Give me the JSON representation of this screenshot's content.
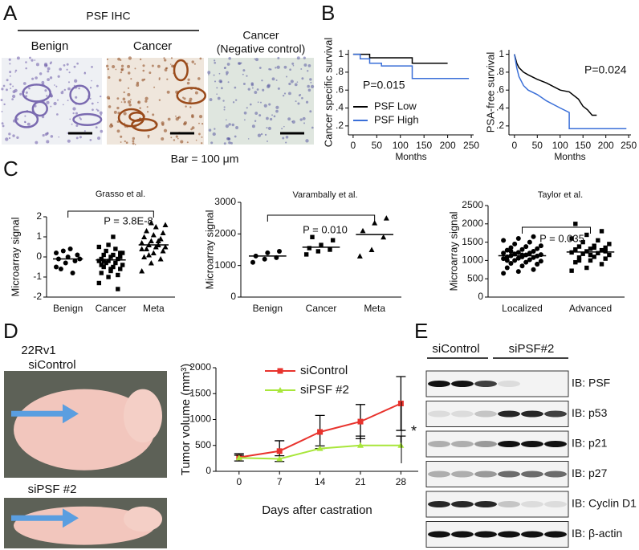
{
  "panel_labels": [
    "A",
    "B",
    "C",
    "D",
    "E"
  ],
  "panel_a": {
    "title": "PSF IHC",
    "columns": [
      [
        "Benign"
      ],
      [
        "Cancer"
      ],
      [
        "Cancer",
        "(Negative control)"
      ]
    ],
    "scale": "Bar = 100 μm"
  },
  "panel_d": {
    "cell_line": "22Rv1",
    "photo_labels": [
      "siControl",
      "siPSF #2"
    ]
  },
  "panel_e": {
    "groups": [
      "siControl",
      "siPSF#2"
    ],
    "blots": [
      "IB: PSF",
      "IB: p53",
      "IB: p21",
      "IB: p27",
      "IB: Cyclin D1",
      "IB: β-actin"
    ]
  },
  "chart_data": [
    {
      "type": "step",
      "ylabel": "Cancer specific survival",
      "xlabel": "Months",
      "annotation": "P=0.015",
      "xlim": [
        -10,
        255
      ],
      "xticks": [
        0,
        50,
        100,
        150,
        200,
        250
      ],
      "ylim": [
        0.1,
        1.05
      ],
      "yticks": [
        1,
        {
          "value": 0.8,
          "label": ".8"
        },
        {
          "value": 0.6,
          "label": ".6"
        },
        {
          "value": 0.4,
          "label": ".4"
        },
        {
          "value": 0.2,
          "label": ".2"
        }
      ],
      "legend": "lower-left",
      "series": [
        {
          "name": "PSF Low",
          "color": "#000000",
          "x": [
            0,
            35,
            35,
            125,
            125,
            200
          ],
          "values": [
            1,
            1,
            0.96,
            0.96,
            0.9,
            0.9
          ]
        },
        {
          "name": "PSF High",
          "color": "#3a6fd8",
          "x": [
            0,
            15,
            15,
            35,
            35,
            60,
            60,
            125,
            125,
            245
          ],
          "values": [
            1,
            1,
            0.95,
            0.95,
            0.9,
            0.9,
            0.87,
            0.87,
            0.73,
            0.73
          ]
        }
      ]
    },
    {
      "type": "step",
      "ylabel": "PSA-free survival",
      "xlabel": "Months",
      "annotation": "P=0.024",
      "xlim": [
        -12,
        255
      ],
      "xticks": [
        0,
        50,
        100,
        150,
        200,
        250
      ],
      "ylim": [
        0.1,
        1.05
      ],
      "yticks": [
        1,
        {
          "value": 0.8,
          "label": ".8"
        },
        {
          "value": 0.6,
          "label": ".6"
        },
        {
          "value": 0.4,
          "label": ".4"
        },
        {
          "value": 0.2,
          "label": ".2"
        }
      ],
      "series": [
        {
          "color": "#000000",
          "x": [
            0,
            5,
            10,
            20,
            30,
            50,
            70,
            100,
            120,
            140,
            150,
            160,
            170,
            180
          ],
          "values": [
            1,
            0.9,
            0.85,
            0.8,
            0.77,
            0.72,
            0.68,
            0.6,
            0.58,
            0.5,
            0.42,
            0.38,
            0.32,
            0.32
          ]
        },
        {
          "color": "#3a6fd8",
          "x": [
            0,
            5,
            10,
            20,
            30,
            50,
            70,
            100,
            120,
            120,
            245
          ],
          "values": [
            1,
            0.85,
            0.75,
            0.65,
            0.6,
            0.55,
            0.48,
            0.4,
            0.35,
            0.17,
            0.17
          ]
        }
      ]
    },
    {
      "type": "dot",
      "title": "Grasso et al.",
      "ylabel": "Microarray signal",
      "annotation": "P = 3.8E-8",
      "categories": [
        "Benign",
        "Cancer",
        "Meta"
      ],
      "markers": [
        "circle",
        "square",
        "triangle"
      ],
      "ylim": [
        -2,
        2
      ],
      "yticks": [
        -2,
        -1,
        0,
        1,
        2
      ],
      "values": [
        [
          -0.5,
          -0.3,
          -0.2,
          -0.1,
          0,
          0.1,
          -0.6,
          0.4,
          -0.1,
          0.3,
          -0.8,
          0.2
        ],
        [
          -1.3,
          -1,
          -0.9,
          -0.8,
          -0.7,
          -0.6,
          -0.5,
          -0.5,
          -0.4,
          -0.3,
          -0.3,
          -0.2,
          -0.2,
          -0.1,
          -0.1,
          0,
          0,
          0.1,
          0.1,
          0.2,
          0.3,
          0.4,
          0.5,
          0.6,
          -1.6,
          -0.4,
          -0.6,
          0.2,
          -0.2,
          1.0
        ],
        [
          -0.7,
          -0.3,
          -0.1,
          0,
          0.2,
          0.3,
          0.4,
          0.5,
          0.5,
          0.6,
          0.6,
          0.7,
          0.8,
          0.9,
          1.0,
          1.1,
          1.2,
          1.3,
          1.5,
          1.6,
          0.1,
          0.8,
          0.4,
          1.7,
          0.9
        ]
      ],
      "means": [
        -0.1,
        -0.15,
        0.6
      ]
    },
    {
      "type": "dot",
      "title": "Varambally et al.",
      "ylabel": "Microarray signal",
      "annotation": "P = 0.010",
      "categories": [
        "Benign",
        "Cancer",
        "Meta"
      ],
      "markers": [
        "circle",
        "square",
        "triangle"
      ],
      "ylim": [
        0,
        3000
      ],
      "yticks": [
        0,
        1000,
        2000,
        3000
      ],
      "values": [
        [
          1100,
          1200,
          1250,
          1300,
          1400,
          1450
        ],
        [
          1350,
          1450,
          1500,
          1550,
          1650,
          1800,
          1900
        ],
        [
          1300,
          1500,
          1900,
          2100,
          2350,
          2500
        ]
      ],
      "means": [
        1300,
        1580,
        1980
      ]
    },
    {
      "type": "dot",
      "title": "Taylor et al.",
      "ylabel": "Microarray signal",
      "annotation": "P = 0.035",
      "categories": [
        "Localized",
        "Advanced"
      ],
      "markers": [
        "circle",
        "square"
      ],
      "ylim": [
        0,
        2500
      ],
      "yticks": [
        0,
        500,
        1000,
        1500,
        2000,
        2500
      ],
      "values": [
        [
          650,
          700,
          750,
          800,
          850,
          900,
          920,
          950,
          980,
          1000,
          1020,
          1050,
          1060,
          1080,
          1100,
          1100,
          1120,
          1130,
          1150,
          1160,
          1180,
          1200,
          1200,
          1220,
          1250,
          1280,
          1300,
          1320,
          1350,
          1380,
          1400,
          1450,
          1500,
          1550,
          1600,
          1650,
          1000,
          1150,
          900,
          1250
        ],
        [
          720,
          800,
          900,
          950,
          1000,
          1050,
          1080,
          1100,
          1150,
          1180,
          1200,
          1220,
          1250,
          1280,
          1300,
          1320,
          1350,
          1380,
          1400,
          1450,
          1500,
          1550,
          1600,
          1700,
          1800,
          2000,
          1150,
          1250,
          1000,
          1350
        ]
      ],
      "means": [
        1130,
        1230
      ]
    },
    {
      "type": "line",
      "ylabel": "Tumor volume (mm³)",
      "xlabel": "Days after castration",
      "annotation": "*",
      "x": [
        0,
        7,
        14,
        21,
        28
      ],
      "xlim": [
        -4,
        31
      ],
      "xticks": [
        0,
        7,
        14,
        21,
        28
      ],
      "ylim": [
        0,
        2000
      ],
      "yticks": [
        0,
        500,
        1000,
        1500,
        2000
      ],
      "legend": "upper-left",
      "series": [
        {
          "name": "siControl",
          "color": "#e8332d",
          "values": [
            270,
            390,
            760,
            960,
            1310
          ],
          "errors": [
            70,
            200,
            320,
            330,
            520
          ]
        },
        {
          "name": "siPSF #2",
          "color": "#a8e63a",
          "values": [
            260,
            240,
            440,
            500,
            500
          ],
          "errors": [
            50,
            60,
            50,
            180,
            180
          ]
        }
      ]
    }
  ]
}
